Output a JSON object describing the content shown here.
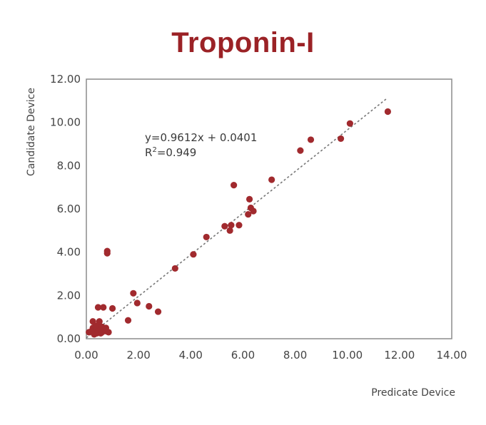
{
  "chart_data": {
    "type": "scatter",
    "title": "Troponin-I",
    "xlabel": "Predicate Device",
    "ylabel": "Candidate Device",
    "xlim": [
      0,
      14
    ],
    "ylim": [
      0,
      12
    ],
    "x_ticks": [
      "0.00",
      "2.00",
      "4.00",
      "6.00",
      "8.00",
      "10.00",
      "12.00",
      "14.00"
    ],
    "y_ticks": [
      "0.00",
      "2.00",
      "4.00",
      "6.00",
      "8.00",
      "10.00",
      "12.00"
    ],
    "grid": false,
    "point_color": "#a12a2e",
    "trendline": {
      "slope": 0.9612,
      "intercept": 0.0401,
      "x_range": [
        0.0,
        11.5
      ],
      "style": "dotted",
      "color": "#777777",
      "equation": "y=0.9612x + 0.0401",
      "r2_prefix": "R",
      "r2_sup": "2",
      "r2_value": "=0.949"
    },
    "points": [
      [
        0.1,
        0.3
      ],
      [
        0.2,
        0.35
      ],
      [
        0.25,
        0.5
      ],
      [
        0.25,
        0.8
      ],
      [
        0.3,
        0.2
      ],
      [
        0.3,
        0.45
      ],
      [
        0.35,
        0.6
      ],
      [
        0.35,
        0.3
      ],
      [
        0.4,
        0.25
      ],
      [
        0.4,
        0.55
      ],
      [
        0.45,
        0.35
      ],
      [
        0.45,
        1.45
      ],
      [
        0.5,
        0.6
      ],
      [
        0.5,
        0.8
      ],
      [
        0.55,
        0.25
      ],
      [
        0.55,
        0.45
      ],
      [
        0.6,
        0.3
      ],
      [
        0.6,
        0.55
      ],
      [
        0.65,
        0.4
      ],
      [
        0.65,
        1.45
      ],
      [
        0.75,
        0.35
      ],
      [
        0.75,
        0.5
      ],
      [
        0.8,
        3.95
      ],
      [
        0.8,
        4.05
      ],
      [
        0.85,
        0.3
      ],
      [
        1.0,
        1.4
      ],
      [
        1.6,
        0.85
      ],
      [
        1.8,
        2.1
      ],
      [
        1.95,
        1.65
      ],
      [
        2.4,
        1.5
      ],
      [
        2.75,
        1.25
      ],
      [
        3.4,
        3.25
      ],
      [
        4.1,
        3.9
      ],
      [
        4.6,
        4.7
      ],
      [
        5.3,
        5.2
      ],
      [
        5.5,
        5.0
      ],
      [
        5.55,
        5.25
      ],
      [
        5.65,
        7.1
      ],
      [
        5.85,
        5.25
      ],
      [
        6.2,
        5.75
      ],
      [
        6.25,
        6.45
      ],
      [
        6.3,
        6.05
      ],
      [
        6.4,
        5.9
      ],
      [
        7.1,
        7.35
      ],
      [
        8.2,
        8.7
      ],
      [
        8.6,
        9.2
      ],
      [
        9.75,
        9.25
      ],
      [
        10.1,
        9.95
      ],
      [
        11.55,
        10.5
      ]
    ]
  }
}
